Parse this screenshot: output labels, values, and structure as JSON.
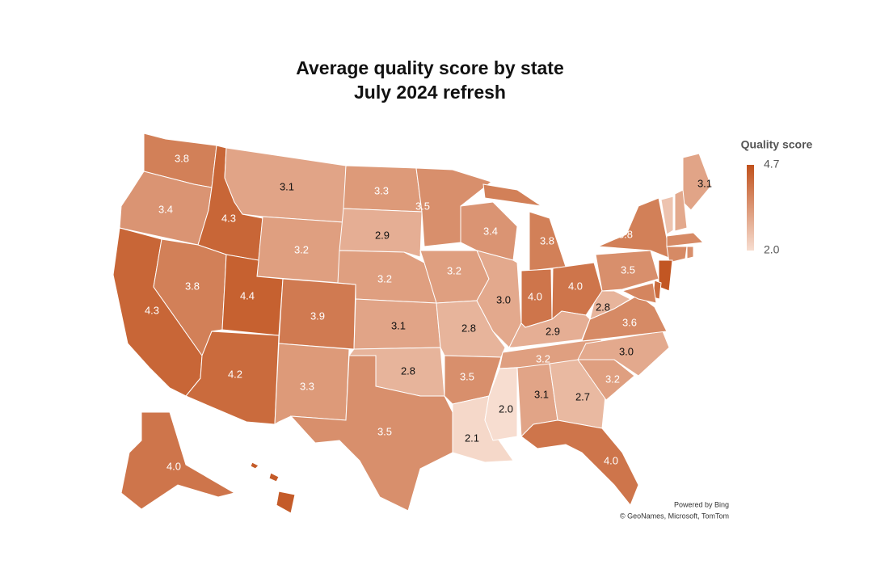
{
  "chart_data": {
    "type": "choropleth",
    "title": "Average quality score by state",
    "subtitle": "July 2024 refresh",
    "colors": [
      "#f7ddd0",
      "#c0511c"
    ],
    "legend": {
      "title": "Quality score",
      "ticks": [
        4.7,
        {
          "value": 2,
          "label": "2.0"
        }
      ]
    },
    "values": [
      3.8,
      3.4,
      4.3,
      4.3,
      3.8,
      3.1,
      3.2,
      4.4,
      4.2,
      3.9,
      3.3,
      3.3,
      2.9,
      3.2,
      3.1,
      2.8,
      3.5,
      3.5,
      3.2,
      2.8,
      3.5,
      2.1,
      3.4,
      3.0,
      3.8,
      4.0,
      4.0,
      2.9,
      3.2,
      2.0,
      3.1,
      2.7,
      4.0,
      3.2,
      3.0,
      3.6,
      2.8,
      3.5,
      3.8,
      3.1,
      2.5,
      3.0,
      3.6,
      3.6,
      3.5,
      4.6,
      4.2,
      3.7,
      4.0,
      4.5
    ],
    "value_labels": [
      "3.8",
      "3.4",
      "4.3",
      "4.3",
      "3.8",
      "3.1",
      "3.2",
      "4.4",
      "4.2",
      "3.9",
      "3.3",
      "3.3",
      "2.9",
      "3.2",
      "3.1",
      "2.8",
      "3.5",
      "3.5",
      "3.2",
      "2.8",
      "3.5",
      "2.1",
      "3.4",
      "3.0",
      "3.8",
      "4.0",
      "4.0",
      "2.9",
      "3.2",
      "2.0",
      "3.1",
      "2.7",
      "4.0",
      "3.2",
      "3.0",
      "3.6",
      "2.8",
      "3.5",
      "3.8",
      "3.1",
      null,
      null,
      null,
      null,
      null,
      null,
      null,
      null,
      "4.0",
      null
    ],
    "attribution": [
      "Powered by Bing",
      "© GeoNames, Microsoft, TomTom"
    ]
  }
}
